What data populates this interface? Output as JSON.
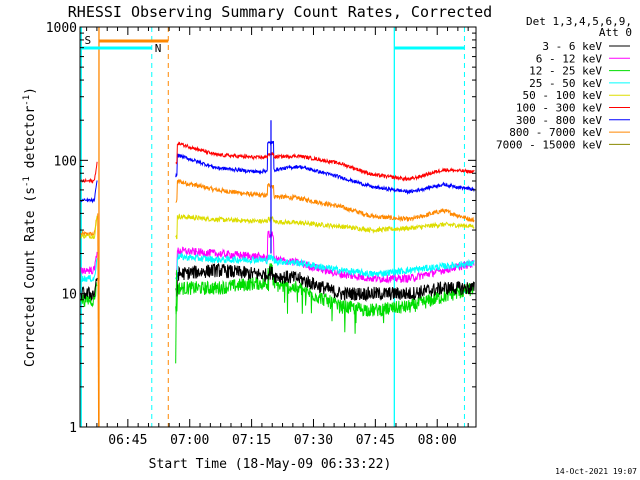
{
  "chart_data": {
    "type": "line",
    "title": "RHESSI Observing Summary Count Rates, Corrected",
    "xlabel": "Start Time (18-May-09 06:33:22)",
    "ylabel": "Corrected Count Rate (s⁻¹ detector⁻¹)",
    "ylabel_parts": [
      "Corrected Count Rate (s",
      "-1",
      " detector",
      "-1",
      ")"
    ],
    "y_scale": "log",
    "ylim": [
      1,
      1000
    ],
    "y_tick_labels": [
      "1",
      "10",
      "100",
      "1000"
    ],
    "x_range_minutes": [
      0,
      96
    ],
    "x_ticks": [
      {
        "label": "06:45",
        "t": 11.6
      },
      {
        "label": "07:00",
        "t": 26.6
      },
      {
        "label": "07:15",
        "t": 41.6
      },
      {
        "label": "07:30",
        "t": 56.6
      },
      {
        "label": "07:45",
        "t": 71.6
      },
      {
        "label": "08:00",
        "t": 86.6
      }
    ],
    "legend_header": [
      "Det 1,3,4,5,6,9,",
      "Att 0"
    ],
    "legend_position": "top-right",
    "series": [
      {
        "name": "3 - 6 keV",
        "color": "#000000",
        "pre": 10,
        "base": [
          14,
          15,
          14,
          13,
          10,
          10,
          10,
          11,
          11
        ],
        "noise": 0.12
      },
      {
        "name": "6 - 12 keV",
        "color": "#ff00ff",
        "pre": 15,
        "base": [
          21,
          20,
          19,
          17,
          14,
          13,
          13,
          15,
          17
        ],
        "noise": 0.07
      },
      {
        "name": "12 - 25 keV",
        "color": "#00dd00",
        "pre": 9,
        "base": [
          11,
          11,
          12,
          11,
          8,
          7.5,
          8,
          9.5,
          11
        ],
        "noise": 0.12
      },
      {
        "name": "25 - 50 keV",
        "color": "#00ffff",
        "pre": 13,
        "base": [
          19,
          18,
          18,
          17,
          15,
          14,
          15,
          16,
          17
        ],
        "noise": 0.06
      },
      {
        "name": "50 - 100 keV",
        "color": "#dddd00",
        "pre": 27,
        "base": [
          38,
          36,
          35,
          34,
          32,
          30,
          31,
          33,
          32
        ],
        "noise": 0.04
      },
      {
        "name": "100 - 300 keV",
        "color": "#ff0000",
        "pre": 70,
        "base": [
          135,
          110,
          105,
          108,
          95,
          78,
          72,
          85,
          82
        ],
        "noise": 0.03
      },
      {
        "name": "300 - 800 keV",
        "color": "#0000ff",
        "pre": 50,
        "base": [
          110,
          88,
          82,
          90,
          75,
          63,
          58,
          66,
          60
        ],
        "noise": 0.03
      },
      {
        "name": "800 - 7000 keV",
        "color": "#ff8800",
        "pre": 28,
        "base": [
          70,
          60,
          55,
          52,
          45,
          38,
          36,
          42,
          35
        ],
        "noise": 0.04
      },
      {
        "name": "7000 - 15000 keV",
        "color": "#888800",
        "pre": 0,
        "base": [],
        "noise": 0
      }
    ],
    "annotations": [
      {
        "label": "S",
        "color": "#ff8800"
      },
      {
        "label": "N",
        "color": "#00ffff"
      }
    ]
  },
  "footer": {
    "timestamp": "14-Oct-2021 19:07"
  }
}
